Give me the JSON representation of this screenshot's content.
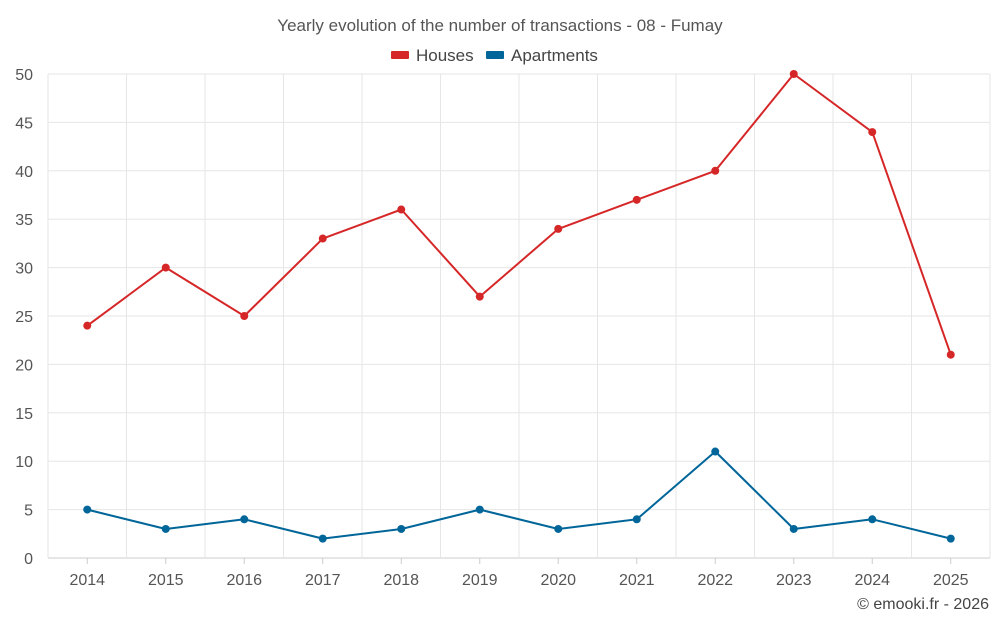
{
  "chart_data": {
    "type": "line",
    "title": "Yearly evolution of the number of transactions - 08 - Fumay",
    "categories": [
      "2014",
      "2015",
      "2016",
      "2017",
      "2018",
      "2019",
      "2020",
      "2021",
      "2022",
      "2023",
      "2024",
      "2025"
    ],
    "series": [
      {
        "name": "Houses",
        "color": "#d62728",
        "values": [
          24,
          30,
          25,
          33,
          36,
          27,
          34,
          37,
          40,
          50,
          44,
          21
        ]
      },
      {
        "name": "Apartments",
        "color": "#006699",
        "values": [
          5,
          3,
          4,
          2,
          3,
          5,
          3,
          4,
          11,
          3,
          4,
          2
        ]
      }
    ],
    "ylim": [
      0,
      50
    ],
    "yticks": [
      0,
      5,
      10,
      15,
      20,
      25,
      30,
      35,
      40,
      45,
      50
    ],
    "xlabel": "",
    "ylabel": "",
    "grid": true,
    "legend": "top-center"
  },
  "credit": "© emooki.fr - 2026"
}
